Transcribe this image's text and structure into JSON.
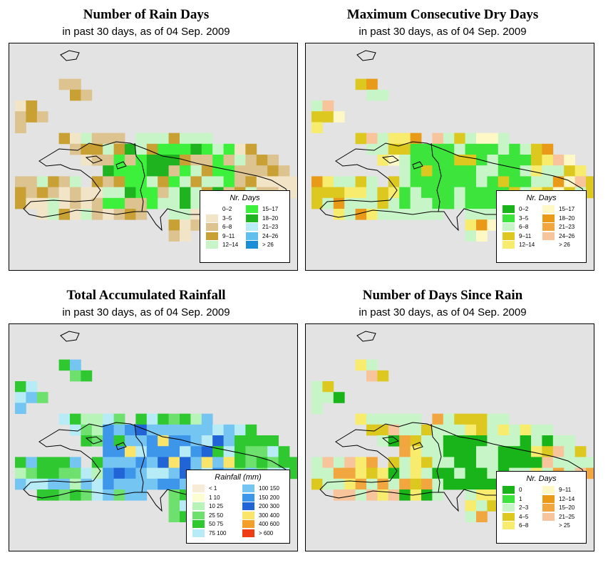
{
  "colors": {
    "background": "#e3e3e3",
    "coast": "#000000"
  },
  "panels": [
    {
      "title": "Number of Rain Days",
      "subtitle": "in past 30 days, as of  04 Sep. 2009",
      "legend": {
        "title": "Nr. Days",
        "items": [
          {
            "label": "0–2",
            "color": "#ffffff"
          },
          {
            "label": "3–5",
            "color": "#f2e4c6"
          },
          {
            "label": "6–8",
            "color": "#dcc390"
          },
          {
            "label": "9–11",
            "color": "#c9a033"
          },
          {
            "label": "12–14",
            "color": "#c8f5c8"
          },
          {
            "label": "15–17",
            "color": "#3cf03c"
          },
          {
            "label": "18–20",
            "color": "#1fb41f"
          },
          {
            "label": "21–23",
            "color": "#b7ecf7"
          },
          {
            "label": "24–26",
            "color": "#60bfee"
          },
          {
            "label": "> 26",
            "color": "#1c8ed6"
          }
        ]
      }
    },
    {
      "title": "Maximum Consecutive Dry Days",
      "subtitle": "in past 30 days, as of  04 Sep. 2009",
      "legend": {
        "title": "Nr. Days",
        "items": [
          {
            "label": "0–2",
            "color": "#19b419"
          },
          {
            "label": "3–5",
            "color": "#3ce43c"
          },
          {
            "label": "6–8",
            "color": "#c8f5c8"
          },
          {
            "label": "9–11",
            "color": "#dcc81e"
          },
          {
            "label": "12–14",
            "color": "#f7ec6e"
          },
          {
            "label": "15–17",
            "color": "#fdf8c6"
          },
          {
            "label": "18–20",
            "color": "#e89a18"
          },
          {
            "label": "21–23",
            "color": "#f2a640"
          },
          {
            "label": "24–26",
            "color": "#f8c49c"
          },
          {
            "label": "> 26",
            "color": "#ffffff"
          }
        ]
      }
    },
    {
      "title": "Total Accumulated Rainfall",
      "subtitle": "in past 30 days, as of  04 Sep. 2009",
      "legend": {
        "title": "Rainfall (mm)",
        "items": [
          {
            "label": "< 1",
            "color": "#f7ecd6"
          },
          {
            "label": "1    10",
            "color": "#fdfdd2"
          },
          {
            "label": "10    25",
            "color": "#b8f4b8"
          },
          {
            "label": "25    50",
            "color": "#6de06d"
          },
          {
            "label": "50    75",
            "color": "#30c830"
          },
          {
            "label": "75    100",
            "color": "#b7ecf7"
          },
          {
            "label": "100    150",
            "color": "#75c5f2"
          },
          {
            "label": "150    200",
            "color": "#3d96ea"
          },
          {
            "label": "200    300",
            "color": "#2164d6"
          },
          {
            "label": "300    400",
            "color": "#fbe46a"
          },
          {
            "label": "400    600",
            "color": "#f4a028"
          },
          {
            "label": "> 600",
            "color": "#f03c14"
          }
        ]
      }
    },
    {
      "title": "Number of Days Since Rain",
      "subtitle": "in past 30 days, as of  04 Sep. 2009",
      "legend": {
        "title": "Nr. Days",
        "items": [
          {
            "label": "0",
            "color": "#19b419"
          },
          {
            "label": "1",
            "color": "#3ce43c"
          },
          {
            "label": "2–3",
            "color": "#c8f5c8"
          },
          {
            "label": "4–5",
            "color": "#dcc81e"
          },
          {
            "label": "6–8",
            "color": "#f7ec6e"
          },
          {
            "label": "9–11",
            "color": "#fdf8c6"
          },
          {
            "label": "12–14",
            "color": "#e89a18"
          },
          {
            "label": "15–20",
            "color": "#f2a640"
          },
          {
            "label": "21–25",
            "color": "#f8c49c"
          },
          {
            "label": "> 25",
            "color": "#ffffff"
          }
        ]
      }
    }
  ]
}
